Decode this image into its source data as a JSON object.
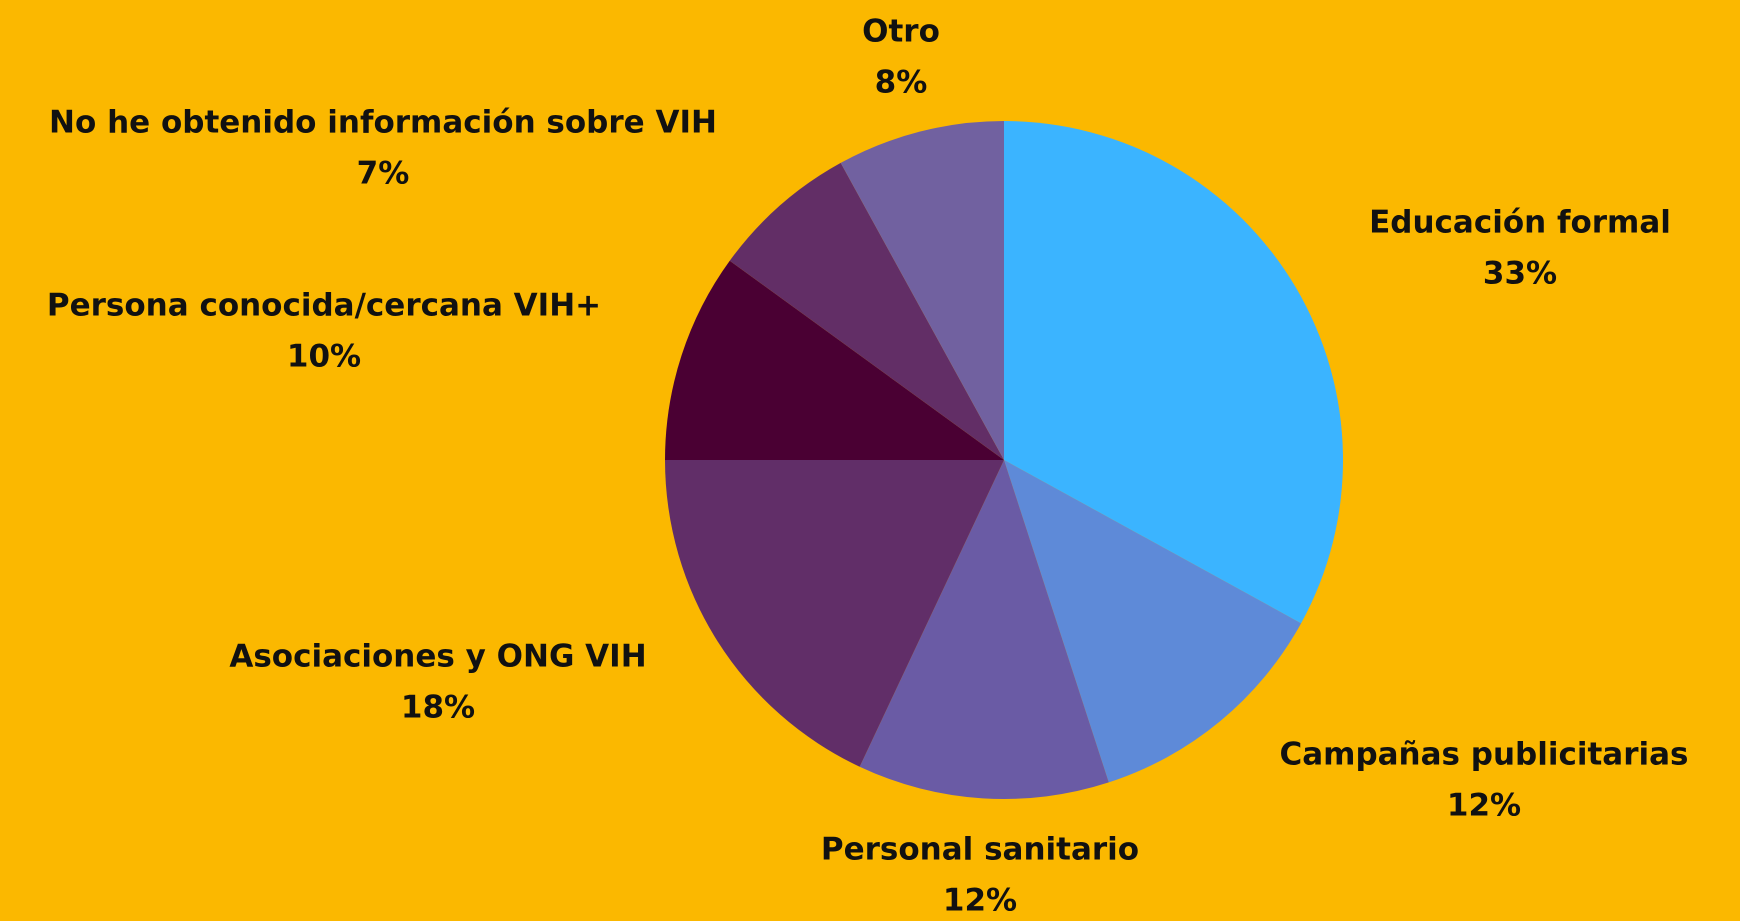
{
  "chart_data": {
    "type": "pie",
    "categories": [
      "Educación formal",
      "Campañas publicitarias",
      "Personal sanitario",
      "Asociaciones y ONG VIH",
      "Persona conocida/cercana VIH+",
      "No he obtenido información sobre VIH",
      "Otro"
    ],
    "values": [
      33,
      12,
      12,
      18,
      10,
      7,
      8
    ],
    "value_labels": [
      "33%",
      "12%",
      "12%",
      "18%",
      "10%",
      "7%",
      "8%"
    ],
    "colors": [
      "#3bb4ff",
      "#5e8ad8",
      "#6a5ba5",
      "#612e68",
      "#4a0033",
      "#622e66",
      "#7161a0"
    ]
  }
}
